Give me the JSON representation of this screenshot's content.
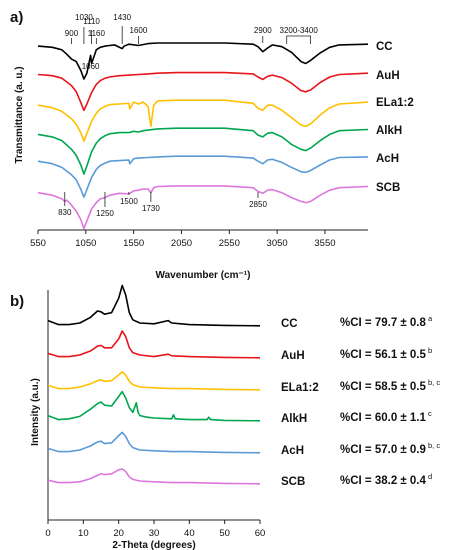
{
  "chart_data": [
    {
      "type": "line",
      "panel_label": "a)",
      "xlabel": "Wavenumber (cm⁻¹)",
      "ylabel": "Transmittance (a. u.)",
      "xlim": [
        550,
        4000
      ],
      "x_ticks": [
        "550",
        "1050",
        "1550",
        "2050",
        "2550",
        "3050",
        "3550"
      ],
      "series": [
        {
          "name": "CC",
          "color": "#000000",
          "x": [
            550,
            700,
            800,
            850,
            900,
            950,
            1000,
            1030,
            1060,
            1100,
            1110,
            1160,
            1200,
            1250,
            1300,
            1350,
            1430,
            1450,
            1500,
            1600,
            1700,
            1800,
            2000,
            2500,
            2800,
            2850,
            2900,
            2950,
            3000,
            3100,
            3200,
            3300,
            3350,
            3400,
            3500,
            3600,
            3700,
            4000
          ],
          "y": [
            0.5,
            0.7,
            1.1,
            1.8,
            2.6,
            3.0,
            4.5,
            5.8,
            4.9,
            2.0,
            3.3,
            1.1,
            0.7,
            0.5,
            0.4,
            0.3,
            0.9,
            0.5,
            0.2,
            0.4,
            0.1,
            0.0,
            0.0,
            0.0,
            0.2,
            0.6,
            1.4,
            0.8,
            0.3,
            0.6,
            1.5,
            3.0,
            3.3,
            2.8,
            1.6,
            0.7,
            0.3,
            0.2
          ]
        },
        {
          "name": "AuH",
          "color": "#e8141c",
          "x": [
            550,
            700,
            800,
            850,
            900,
            950,
            1000,
            1030,
            1060,
            1110,
            1160,
            1200,
            1250,
            1300,
            1400,
            1500,
            1600,
            1700,
            1800,
            2000,
            2500,
            2800,
            2850,
            2900,
            2950,
            3000,
            3100,
            3200,
            3300,
            3350,
            3400,
            3500,
            3600,
            3700,
            4000
          ],
          "y": [
            0.4,
            0.6,
            1.0,
            1.6,
            2.2,
            3.2,
            5.0,
            6.2,
            5.2,
            3.3,
            2.0,
            1.4,
            1.0,
            0.8,
            0.6,
            0.5,
            0.4,
            0.3,
            0.2,
            0.1,
            0.1,
            0.3,
            0.8,
            1.2,
            0.7,
            0.5,
            0.9,
            1.8,
            3.0,
            3.2,
            2.9,
            1.7,
            0.8,
            0.4,
            0.2
          ]
        },
        {
          "name": "ELa1:2",
          "color": "#ffc000",
          "x": [
            550,
            700,
            800,
            850,
            900,
            950,
            1000,
            1030,
            1060,
            1110,
            1160,
            1200,
            1250,
            1300,
            1400,
            1500,
            1510,
            1550,
            1600,
            1650,
            1700,
            1730,
            1760,
            1800,
            2000,
            2500,
            2800,
            2850,
            2900,
            2950,
            3000,
            3100,
            3200,
            3300,
            3350,
            3400,
            3500,
            3600,
            3700,
            4000
          ],
          "y": [
            1.0,
            1.4,
            2.0,
            2.6,
            3.2,
            4.1,
            5.5,
            6.8,
            5.6,
            3.6,
            2.3,
            1.6,
            1.2,
            0.9,
            0.8,
            0.7,
            1.6,
            0.5,
            0.8,
            0.5,
            1.2,
            4.4,
            1.0,
            0.3,
            0.2,
            0.2,
            0.7,
            1.5,
            1.8,
            1.0,
            1.0,
            1.8,
            3.0,
            4.2,
            4.4,
            4.0,
            2.6,
            1.4,
            0.8,
            0.5
          ]
        },
        {
          "name": "AlkH",
          "color": "#00a650",
          "x": [
            550,
            700,
            800,
            850,
            900,
            950,
            1000,
            1030,
            1060,
            1110,
            1160,
            1200,
            1250,
            1300,
            1400,
            1500,
            1550,
            1600,
            1650,
            1700,
            1800,
            2000,
            2500,
            2800,
            2850,
            2900,
            2950,
            3000,
            3100,
            3200,
            3300,
            3350,
            3400,
            3500,
            3600,
            3700,
            4000
          ],
          "y": [
            1.2,
            1.6,
            2.2,
            2.9,
            3.6,
            4.6,
            6.2,
            7.6,
            6.3,
            4.0,
            2.6,
            1.9,
            1.4,
            1.1,
            0.9,
            0.9,
            0.7,
            0.8,
            0.6,
            0.5,
            0.3,
            0.2,
            0.2,
            0.6,
            1.3,
            1.6,
            1.0,
            0.9,
            1.6,
            2.8,
            3.6,
            3.8,
            3.4,
            2.2,
            1.2,
            0.6,
            0.4
          ]
        },
        {
          "name": "AcH",
          "color": "#5b9bd5",
          "x": [
            550,
            700,
            800,
            850,
            900,
            950,
            1000,
            1030,
            1060,
            1110,
            1160,
            1200,
            1250,
            1300,
            1400,
            1500,
            1510,
            1550,
            1600,
            1700,
            1800,
            2000,
            2500,
            2800,
            2850,
            2900,
            2950,
            3000,
            3100,
            3200,
            3300,
            3350,
            3400,
            3500,
            3600,
            3700,
            4000
          ],
          "y": [
            1.0,
            1.4,
            2.0,
            2.6,
            3.2,
            4.0,
            5.6,
            6.8,
            5.6,
            3.6,
            2.3,
            1.7,
            1.3,
            1.0,
            0.9,
            0.8,
            1.4,
            0.6,
            0.5,
            0.4,
            0.3,
            0.2,
            0.2,
            0.5,
            1.0,
            1.4,
            0.8,
            0.7,
            1.2,
            2.0,
            2.7,
            2.8,
            2.5,
            1.6,
            0.8,
            0.4,
            0.3
          ]
        },
        {
          "name": "SCB",
          "color": "#dd77dd",
          "x": [
            550,
            700,
            800,
            830,
            850,
            900,
            950,
            1000,
            1030,
            1060,
            1110,
            1160,
            1200,
            1250,
            1300,
            1400,
            1500,
            1550,
            1600,
            1650,
            1700,
            1730,
            1760,
            1800,
            2000,
            2500,
            2800,
            2850,
            2900,
            2950,
            3000,
            3100,
            3200,
            3300,
            3350,
            3400,
            3500,
            3600,
            3700,
            4000
          ],
          "y": [
            1.4,
            1.8,
            2.4,
            2.8,
            2.6,
            3.4,
            4.4,
            5.8,
            7.2,
            6.0,
            4.0,
            3.0,
            2.4,
            2.2,
            1.8,
            1.5,
            1.6,
            1.1,
            1.0,
            0.8,
            0.8,
            1.4,
            0.6,
            0.4,
            0.3,
            0.3,
            0.6,
            1.2,
            1.5,
            1.0,
            0.9,
            1.4,
            2.2,
            2.8,
            3.0,
            2.8,
            1.8,
            1.0,
            0.6,
            0.4
          ]
        }
      ],
      "annotations": {
        "top": [
          "900",
          "1030",
          "1110",
          "1160",
          "1430",
          "1600",
          "1060",
          "2900",
          "3200-3400"
        ],
        "bottom": [
          "830",
          "1250",
          "1500",
          "1730",
          "2850"
        ]
      }
    },
    {
      "type": "line",
      "panel_label": "b)",
      "xlabel": "2-Theta (degrees)",
      "ylabel": "Intensity (a.u.)",
      "xlim": [
        0,
        60
      ],
      "x_ticks": [
        "0",
        "10",
        "20",
        "30",
        "40",
        "50",
        "60"
      ],
      "series": [
        {
          "name": "CC",
          "color": "#000000",
          "x": [
            0,
            3,
            6,
            9,
            12,
            14,
            15,
            16,
            18,
            20,
            21,
            22,
            23,
            24,
            26,
            30,
            34,
            35,
            40,
            50,
            60
          ],
          "y": [
            0.8,
            0.3,
            0.3,
            0.5,
            1.2,
            2.0,
            1.9,
            1.6,
            1.8,
            3.6,
            5.2,
            4.0,
            1.8,
            0.9,
            0.5,
            0.4,
            0.8,
            0.5,
            0.3,
            0.2,
            0.15
          ]
        },
        {
          "name": "AuH",
          "color": "#e8141c",
          "x": [
            0,
            3,
            6,
            9,
            12,
            14,
            15,
            16,
            18,
            20,
            21,
            22,
            23,
            24,
            26,
            30,
            34,
            35,
            40,
            50,
            60
          ],
          "y": [
            0.7,
            0.3,
            0.3,
            0.5,
            1.0,
            1.6,
            1.7,
            1.4,
            1.4,
            2.5,
            3.5,
            2.8,
            1.4,
            0.8,
            0.5,
            0.3,
            0.6,
            0.4,
            0.3,
            0.2,
            0.15
          ]
        },
        {
          "name": "ELa1:2",
          "color": "#ffc000",
          "x": [
            0,
            3,
            6,
            9,
            12,
            14,
            15,
            16,
            18,
            20,
            21,
            22,
            23,
            24,
            26,
            30,
            35,
            40,
            50,
            60
          ],
          "y": [
            0.7,
            0.3,
            0.3,
            0.5,
            0.9,
            1.3,
            1.4,
            1.2,
            1.3,
            2.0,
            2.4,
            2.0,
            1.2,
            0.8,
            0.5,
            0.4,
            0.3,
            0.3,
            0.2,
            0.15
          ]
        },
        {
          "name": "AlkH",
          "color": "#00a650",
          "x": [
            0,
            3,
            6,
            9,
            12,
            14,
            15,
            16,
            18,
            20,
            21,
            22,
            23,
            24,
            25,
            25.5,
            26,
            28,
            30,
            35,
            35.5,
            36,
            40,
            45,
            45.5,
            46,
            50,
            60
          ],
          "y": [
            0.8,
            0.3,
            0.4,
            0.7,
            1.6,
            2.3,
            2.5,
            2.1,
            2.0,
            3.2,
            3.8,
            3.0,
            1.8,
            1.2,
            2.4,
            1.2,
            0.8,
            0.6,
            0.5,
            0.4,
            0.9,
            0.4,
            0.3,
            0.3,
            0.6,
            0.3,
            0.2,
            0.15
          ]
        },
        {
          "name": "AcH",
          "color": "#5b9bd5",
          "x": [
            0,
            3,
            6,
            9,
            12,
            14,
            15,
            16,
            18,
            20,
            21,
            22,
            23,
            24,
            26,
            30,
            35,
            40,
            50,
            60
          ],
          "y": [
            0.7,
            0.3,
            0.3,
            0.5,
            1.0,
            1.5,
            1.6,
            1.3,
            1.4,
            2.3,
            2.7,
            2.2,
            1.3,
            0.8,
            0.5,
            0.4,
            0.3,
            0.3,
            0.2,
            0.15
          ]
        },
        {
          "name": "SCB",
          "color": "#dd77dd",
          "x": [
            0,
            3,
            6,
            9,
            12,
            14,
            15,
            16,
            18,
            20,
            21,
            22,
            23,
            24,
            26,
            30,
            35,
            40,
            50,
            60
          ],
          "y": [
            0.6,
            0.3,
            0.3,
            0.4,
            0.8,
            1.2,
            1.4,
            1.3,
            1.4,
            1.9,
            2.0,
            1.7,
            1.0,
            0.7,
            0.5,
            0.4,
            0.3,
            0.3,
            0.2,
            0.15
          ]
        }
      ],
      "crystallinity": [
        {
          "text": "%CI = 79.7 ± 0.8",
          "sup": "a"
        },
        {
          "text": "%CI = 56.1 ± 0.5",
          "sup": "b"
        },
        {
          "text": "%CI = 58.5 ± 0.5",
          "sup": "b, c"
        },
        {
          "text": "%CI = 60.0 ± 1.1",
          "sup": "c"
        },
        {
          "text": "%CI = 57.0 ± 0.9",
          "sup": "b, c"
        },
        {
          "text": "%CI = 38.2 ± 0.4",
          "sup": "d"
        }
      ]
    }
  ]
}
